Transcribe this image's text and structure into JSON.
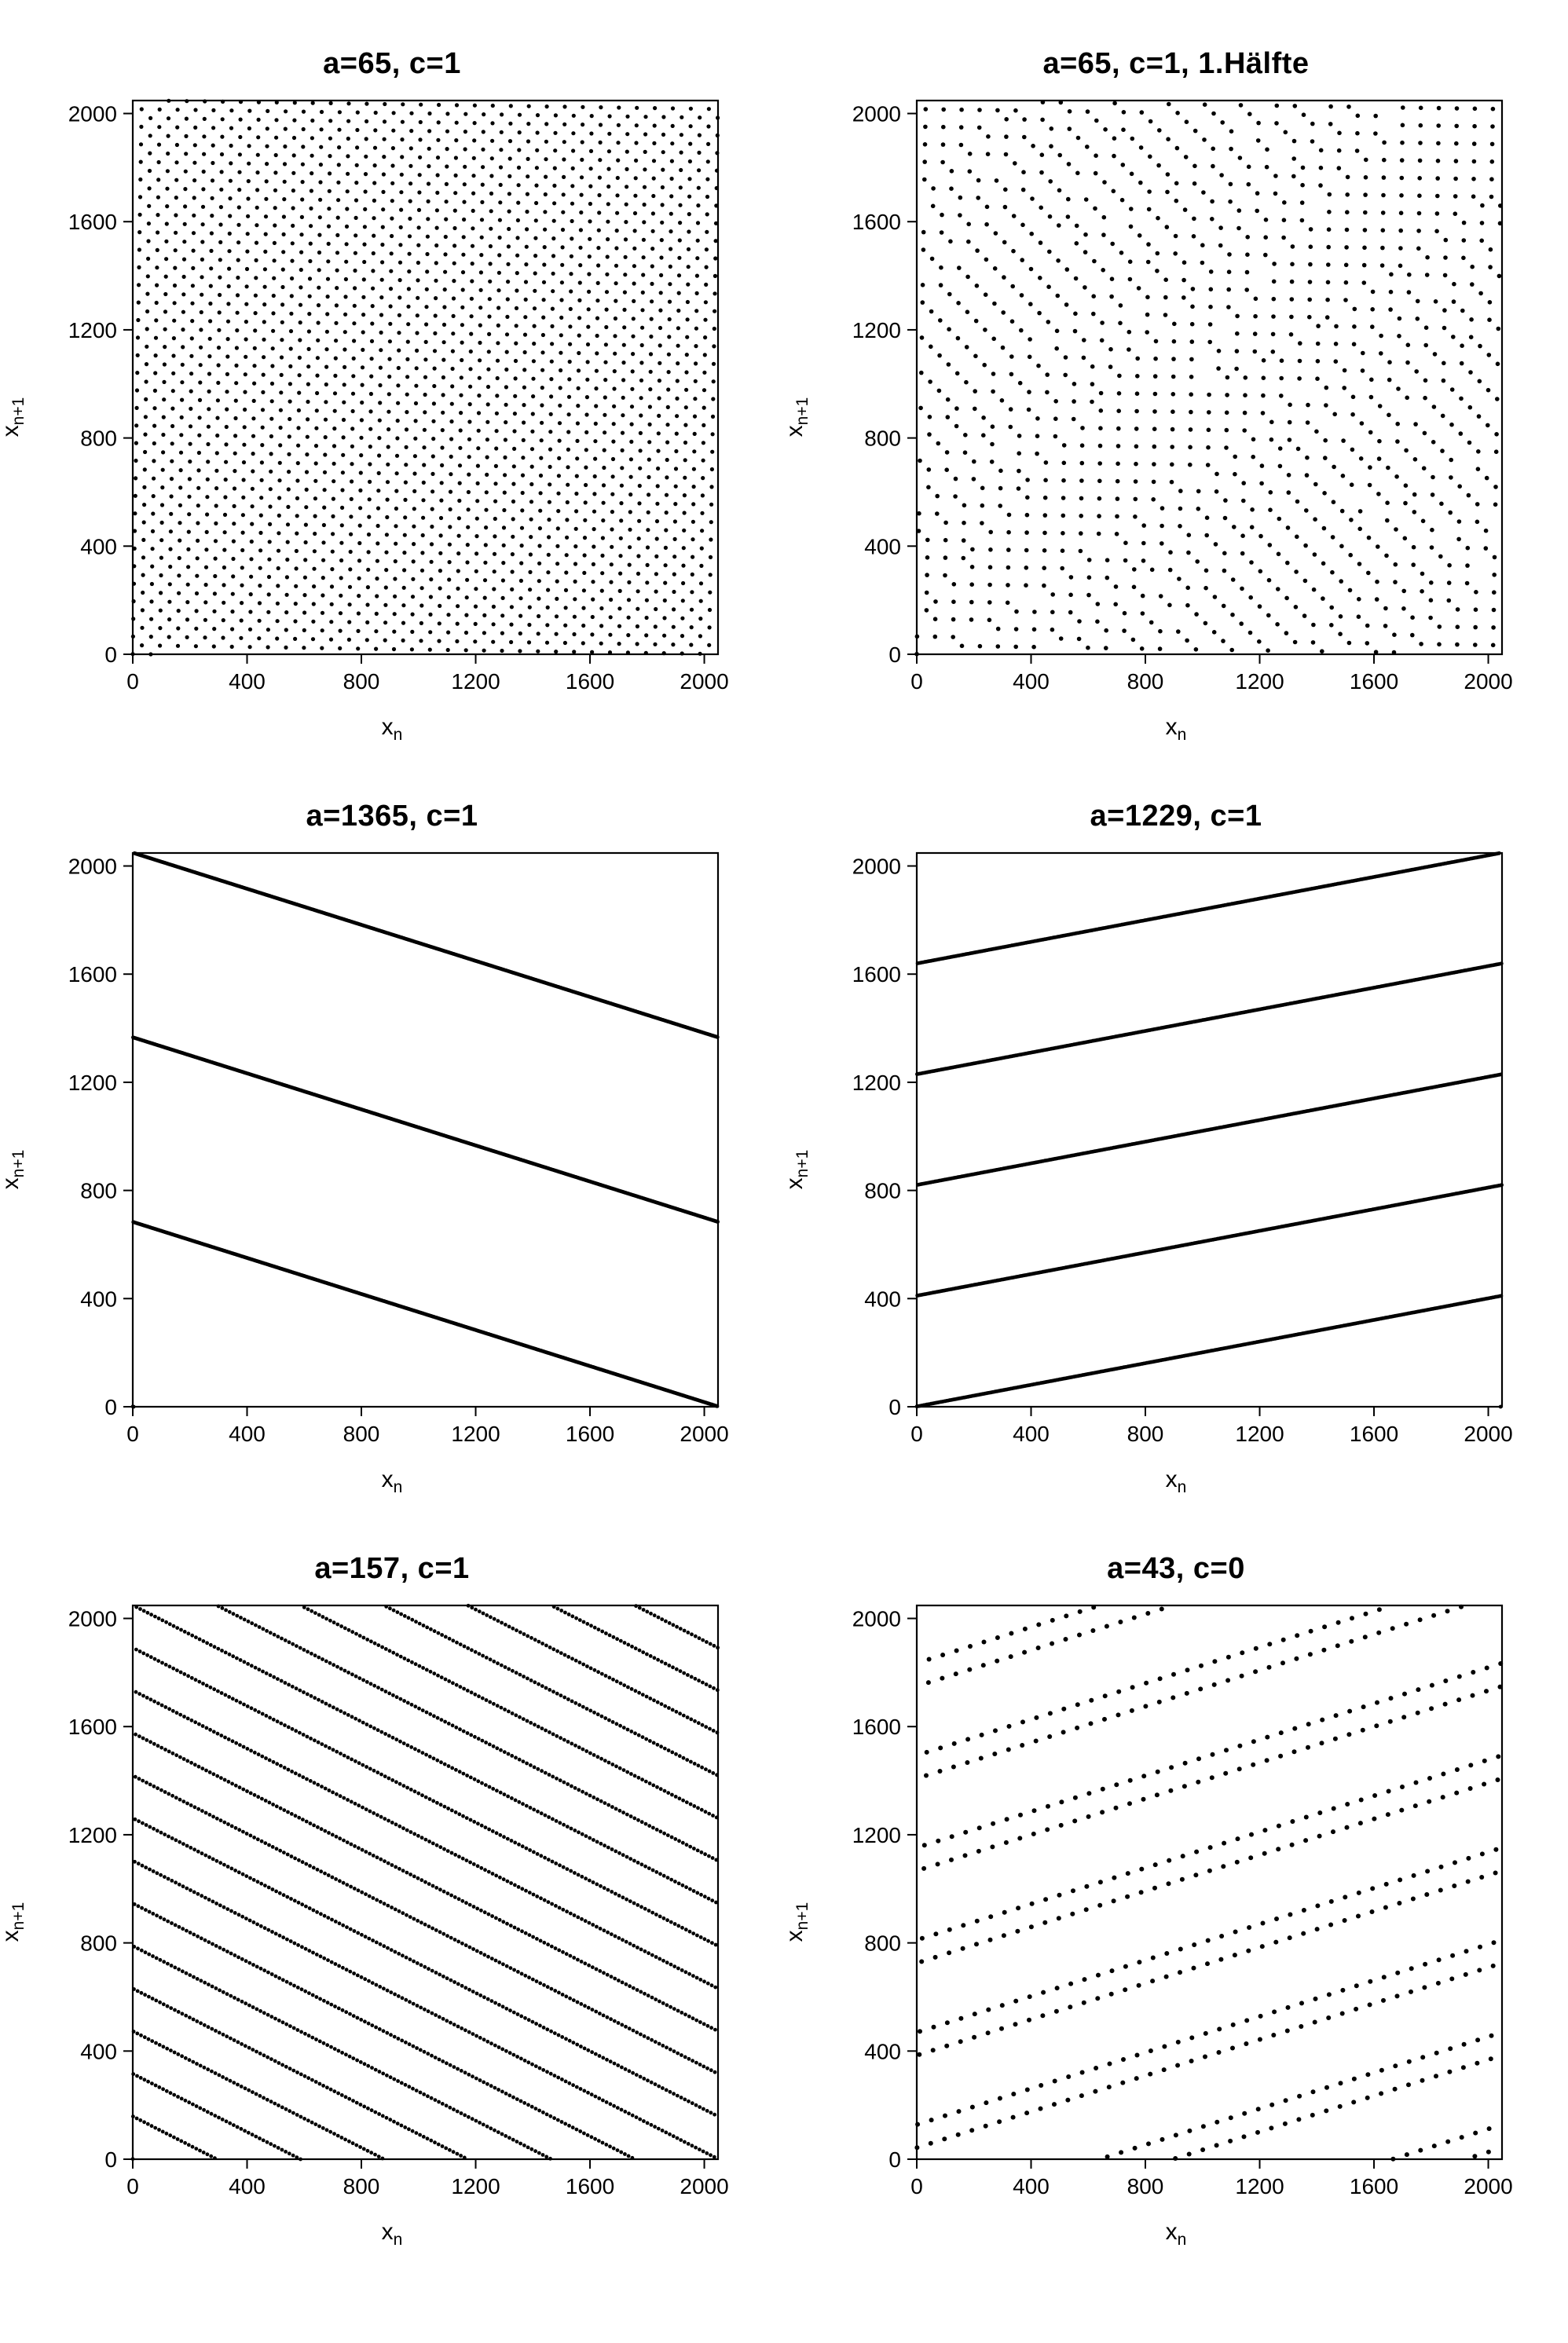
{
  "layout": {
    "rows": 3,
    "cols": 2,
    "page_bg": "#ffffff",
    "font_family": "Helvetica",
    "title_fontsize": 38,
    "title_fontweight": 700,
    "axis_label_fontsize": 30,
    "tick_label_fontsize": 28,
    "point_color": "#000000",
    "frame_color": "#000000",
    "frame_stroke_width": 2.2,
    "tick_length": 12
  },
  "common_axes": {
    "xlabel": "xₙ",
    "ylabel": "xₙ₊₁",
    "xlim": [
      0,
      2048
    ],
    "ylim": [
      0,
      2048
    ],
    "x_ticks": [
      0,
      400,
      800,
      1200,
      1600,
      2000
    ],
    "y_ticks": [
      0,
      400,
      800,
      1200,
      1600,
      2000
    ],
    "x_tick_labels": [
      "0",
      "400",
      "800",
      "1200",
      "1600",
      "2000"
    ],
    "y_tick_labels": [
      "0",
      "400",
      "800",
      "1200",
      "1600",
      "2000"
    ]
  },
  "lcg": {
    "modulus": 2048,
    "seed": 0
  },
  "panels": [
    {
      "id": "p1",
      "title": "a=65, c=1",
      "type": "scatter",
      "generator": {
        "kind": "lcg",
        "a": 65,
        "c": 1,
        "m": 2048,
        "seed": 0,
        "n_points": 2048,
        "take": "all"
      },
      "marker_radius": 2.6
    },
    {
      "id": "p2",
      "title": "a=65, c=1, 1.Hälfte",
      "type": "scatter",
      "generator": {
        "kind": "lcg",
        "a": 65,
        "c": 1,
        "m": 2048,
        "seed": 0,
        "n_points": 2048,
        "take": "first_half"
      },
      "marker_radius": 2.8
    },
    {
      "id": "p3",
      "title": "a=1365, c=1",
      "type": "scatter",
      "generator": {
        "kind": "lcg",
        "a": 1365,
        "c": 1,
        "m": 2048,
        "seed": 0,
        "n_points": 2048,
        "take": "all"
      },
      "marker_radius": 2.4,
      "note": "points fall on 3 parallel lines, negative slope"
    },
    {
      "id": "p4",
      "title": "a=1229, c=1",
      "type": "scatter",
      "generator": {
        "kind": "lcg",
        "a": 1229,
        "c": 1,
        "m": 2048,
        "seed": 0,
        "n_points": 2048,
        "take": "all"
      },
      "marker_radius": 2.4,
      "note": "points fall on 5 parallel lines, positive slope"
    },
    {
      "id": "p5",
      "title": "a=157, c=1",
      "type": "scatter",
      "generator": {
        "kind": "lcg",
        "a": 157,
        "c": 1,
        "m": 2048,
        "seed": 0,
        "n_points": 2048,
        "take": "all"
      },
      "marker_radius": 2.4,
      "note": "points fall on ~13 parallel diagonal lines"
    },
    {
      "id": "p6",
      "title": "a=43, c=0",
      "type": "scatter",
      "generator": {
        "kind": "lcg",
        "a": 43,
        "c": 0,
        "m": 2048,
        "seed": 1,
        "n_points": 512,
        "take": "all"
      },
      "marker_radius": 3.0,
      "note": "multiplicative generator, shorter period, dotted diagonal bands"
    }
  ]
}
